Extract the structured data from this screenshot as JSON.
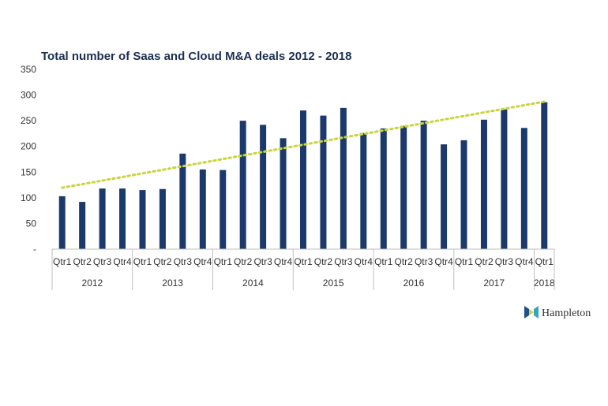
{
  "brand": {
    "name": "Hampleton",
    "colors": [
      "#1e4f8a",
      "#3aa3c2",
      "#c9d53a"
    ]
  },
  "chart_data": {
    "type": "bar",
    "title": "Total number of Saas and Cloud M&A deals 2012 - 2018",
    "ylim": [
      0,
      350
    ],
    "yticks": [
      0,
      50,
      100,
      150,
      200,
      250,
      300,
      350
    ],
    "ytick_labels": [
      "-",
      "50",
      "100",
      "150",
      "200",
      "250",
      "300",
      "350"
    ],
    "categories": [
      "Qtr1",
      "Qtr2",
      "Qtr3",
      "Qtr4",
      "Qtr1",
      "Qtr2",
      "Qtr3",
      "Qtr4",
      "Qtr1",
      "Qtr2",
      "Qtr3",
      "Qtr4",
      "Qtr1",
      "Qtr2",
      "Qtr3",
      "Qtr4",
      "Qtr1",
      "Qtr2",
      "Qtr3",
      "Qtr4",
      "Qtr1",
      "Qtr2",
      "Qtr3",
      "Qtr4",
      "Qtr1"
    ],
    "year_groups": [
      {
        "label": "2012",
        "count": 4
      },
      {
        "label": "2013",
        "count": 4
      },
      {
        "label": "2014",
        "count": 4
      },
      {
        "label": "2015",
        "count": 4
      },
      {
        "label": "2016",
        "count": 4
      },
      {
        "label": "2017",
        "count": 4
      },
      {
        "label": "2018",
        "count": 1
      }
    ],
    "values": [
      103,
      92,
      118,
      118,
      115,
      117,
      186,
      155,
      154,
      250,
      242,
      216,
      270,
      260,
      275,
      226,
      235,
      240,
      250,
      204,
      212,
      252,
      272,
      236,
      286
    ],
    "trendline": {
      "type": "linear",
      "style": "dotted",
      "color": "#c9d53a"
    },
    "bar_color": "#1b3a6b",
    "grid": false
  }
}
